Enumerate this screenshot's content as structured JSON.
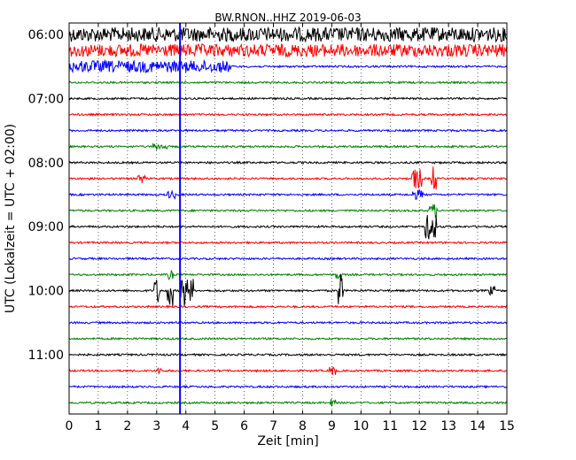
{
  "chart_data": {
    "type": "line",
    "title": "BW.RNON..HHZ 2019-06-03",
    "xlabel": "Zeit  [min]",
    "ylabel": "UTC (Lokalzeit = UTC + 02:00)",
    "xlim": [
      0,
      15
    ],
    "x_ticks": [
      "0",
      "1",
      "2",
      "3",
      "4",
      "5",
      "6",
      "7",
      "8",
      "9",
      "10",
      "11",
      "12",
      "13",
      "14",
      "15"
    ],
    "y_tick_labels": [
      "06:00",
      "07:00",
      "08:00",
      "09:00",
      "10:00",
      "11:00"
    ],
    "rows": 24,
    "row_minutes": 15,
    "start_time": "06:00",
    "colors_cycle": [
      "#000000",
      "#ff0000",
      "#0000ff",
      "#008000"
    ],
    "vertical_grid": "dotted",
    "events": [
      {
        "row": 0,
        "minute": 0,
        "duration": 15,
        "amp": 0.9
      },
      {
        "row": 1,
        "minute": 0,
        "duration": 15,
        "amp": 0.8
      },
      {
        "row": 2,
        "minute": 0,
        "duration": 5.5,
        "amp": 0.75
      },
      {
        "row": 7,
        "minute": 2.9,
        "duration": 0.4,
        "amp": 0.4
      },
      {
        "row": 9,
        "minute": 2.35,
        "duration": 0.2,
        "amp": 0.6
      },
      {
        "row": 9,
        "minute": 11.8,
        "duration": 0.25,
        "amp": 1.3
      },
      {
        "row": 9,
        "minute": 12.45,
        "duration": 0.1,
        "amp": 1.6
      },
      {
        "row": 10,
        "minute": 3.4,
        "duration": 0.2,
        "amp": 0.5
      },
      {
        "row": 10,
        "minute": 11.8,
        "duration": 0.3,
        "amp": 0.6
      },
      {
        "row": 11,
        "minute": 12.4,
        "duration": 0.2,
        "amp": 0.9
      },
      {
        "row": 12,
        "minute": 12.25,
        "duration": 0.3,
        "amp": 1.6
      },
      {
        "row": 15,
        "minute": 3.4,
        "duration": 0.1,
        "amp": 0.6
      },
      {
        "row": 15,
        "minute": 9.2,
        "duration": 0.1,
        "amp": 0.6
      },
      {
        "row": 16,
        "minute": 2.95,
        "duration": 0.1,
        "amp": 1.6
      },
      {
        "row": 16,
        "minute": 3.4,
        "duration": 0.1,
        "amp": 2.0
      },
      {
        "row": 16,
        "minute": 3.85,
        "duration": 0.1,
        "amp": 2.2
      },
      {
        "row": 16,
        "minute": 4.05,
        "duration": 0.15,
        "amp": 1.5
      },
      {
        "row": 16,
        "minute": 9.25,
        "duration": 0.1,
        "amp": 2.2
      },
      {
        "row": 16,
        "minute": 14.45,
        "duration": 0.1,
        "amp": 0.6
      },
      {
        "row": 21,
        "minute": 3.0,
        "duration": 0.1,
        "amp": 0.5
      },
      {
        "row": 21,
        "minute": 8.95,
        "duration": 0.15,
        "amp": 0.6
      },
      {
        "row": 23,
        "minute": 9.0,
        "duration": 0.1,
        "amp": 0.5
      }
    ],
    "spike": {
      "minute": 3.8,
      "color": "#0000ff",
      "from_row": 0,
      "to_row": 23
    }
  }
}
